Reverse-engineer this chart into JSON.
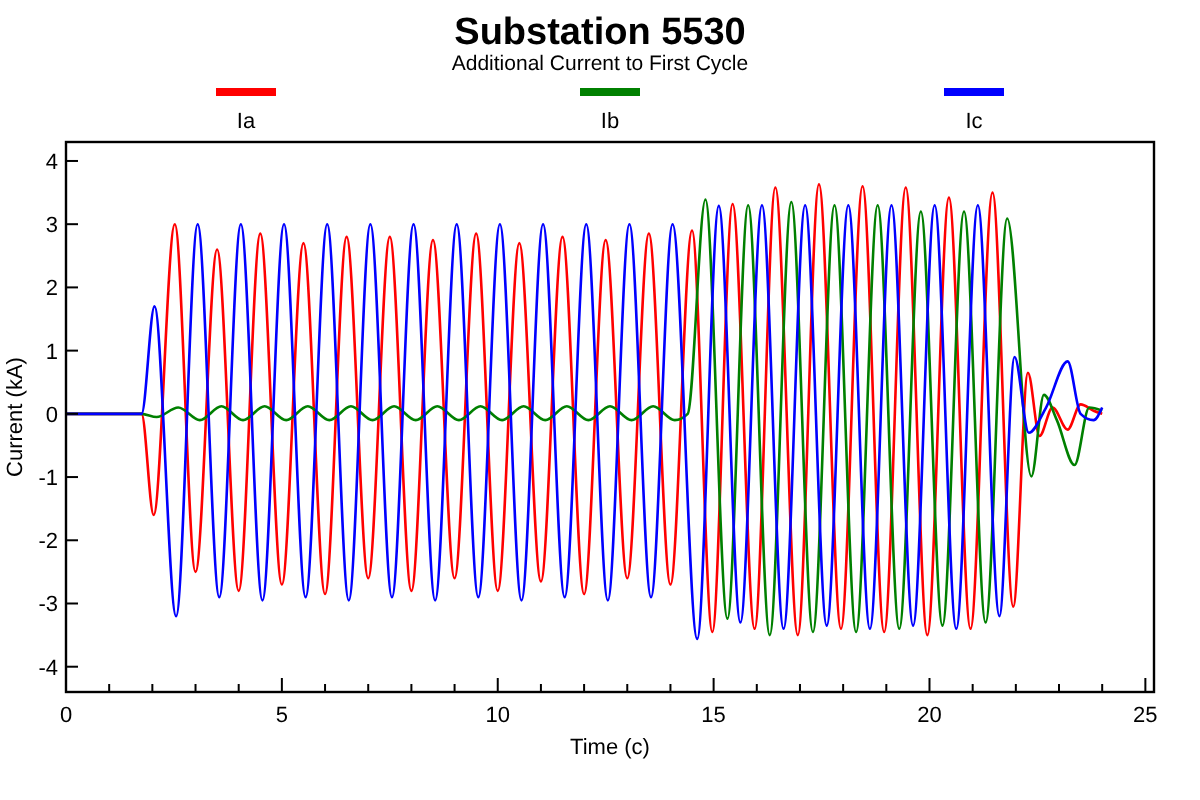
{
  "chart_data": {
    "type": "line",
    "title": "Substation 5530",
    "subtitle": "Additional Current to First Cycle",
    "xlabel": "Time (c)",
    "ylabel": "Current (kA)",
    "xlim": [
      0,
      25.2
    ],
    "ylim": [
      -4.4,
      4.3
    ],
    "xticks": [
      0,
      {
        "value": 1,
        "label": null
      },
      {
        "value": 2,
        "label": null
      },
      {
        "value": 3,
        "label": null
      },
      {
        "value": 4,
        "label": null
      },
      5,
      {
        "value": 6,
        "label": null
      },
      {
        "value": 7,
        "label": null
      },
      {
        "value": 8,
        "label": null
      },
      {
        "value": 9,
        "label": null
      },
      10,
      {
        "value": 11,
        "label": null
      },
      {
        "value": 12,
        "label": null
      },
      {
        "value": 13,
        "label": null
      },
      {
        "value": 14,
        "label": null
      },
      15,
      {
        "value": 16,
        "label": null
      },
      {
        "value": 17,
        "label": null
      },
      {
        "value": 18,
        "label": null
      },
      {
        "value": 19,
        "label": null
      },
      20,
      {
        "value": 21,
        "label": null
      },
      {
        "value": 22,
        "label": null
      },
      {
        "value": 23,
        "label": null
      },
      {
        "value": 24,
        "label": null
      },
      25
    ],
    "yticks": [
      -4,
      -3,
      -2,
      -1,
      0,
      1,
      2,
      3,
      4
    ],
    "grid": false,
    "legend": "top",
    "marker": "none",
    "line_style": "solid",
    "series": [
      {
        "name": "Ia",
        "color": "#ff0000",
        "x": [
          0,
          1.75,
          2.03,
          2.52,
          3.0,
          3.5,
          4.0,
          4.5,
          5.0,
          5.5,
          6.0,
          6.5,
          7.0,
          7.5,
          8.0,
          8.5,
          9.0,
          9.5,
          10.0,
          10.5,
          11.0,
          11.5,
          12.0,
          12.5,
          13.0,
          13.5,
          14.0,
          14.5,
          14.97,
          15.44,
          15.95,
          16.43,
          16.95,
          17.44,
          17.95,
          18.45,
          18.95,
          19.45,
          19.95,
          20.45,
          20.95,
          21.46,
          21.94,
          22.28,
          22.55,
          22.85,
          23.2,
          23.5,
          23.8,
          24.0
        ],
        "values": [
          0,
          0,
          -1.6,
          3.0,
          -2.5,
          2.6,
          -2.8,
          2.85,
          -2.7,
          2.7,
          -2.85,
          2.8,
          -2.6,
          2.8,
          -2.8,
          2.75,
          -2.6,
          2.85,
          -2.8,
          2.7,
          -2.65,
          2.8,
          -2.85,
          2.75,
          -2.6,
          2.85,
          -2.7,
          2.9,
          -3.45,
          3.32,
          -3.4,
          3.58,
          -3.5,
          3.63,
          -3.4,
          3.6,
          -3.45,
          3.58,
          -3.5,
          3.42,
          -3.4,
          3.5,
          -3.05,
          0.65,
          -0.35,
          0.1,
          -0.25,
          0.15,
          0.05,
          0.0
        ]
      },
      {
        "name": "Ib",
        "color": "#008000",
        "x": [
          0,
          1.75,
          2.1,
          2.6,
          3.1,
          3.6,
          4.1,
          4.6,
          5.1,
          5.6,
          6.1,
          6.6,
          7.1,
          7.6,
          8.1,
          8.6,
          9.1,
          9.6,
          10.1,
          10.6,
          11.1,
          11.6,
          12.1,
          12.6,
          13.1,
          13.6,
          14.1,
          14.4,
          14.81,
          15.32,
          15.8,
          16.3,
          16.8,
          17.3,
          17.8,
          18.3,
          18.8,
          19.3,
          19.8,
          20.3,
          20.8,
          21.3,
          21.8,
          22.36,
          22.65,
          22.95,
          23.36,
          23.7,
          24.0
        ],
        "values": [
          0,
          0,
          -0.05,
          0.1,
          -0.1,
          0.12,
          -0.1,
          0.12,
          -0.1,
          0.12,
          -0.1,
          0.12,
          -0.1,
          0.12,
          -0.1,
          0.12,
          -0.1,
          0.12,
          -0.1,
          0.12,
          -0.1,
          0.12,
          -0.1,
          0.12,
          -0.1,
          0.12,
          -0.1,
          0.0,
          3.39,
          -3.24,
          3.3,
          -3.5,
          3.35,
          -3.45,
          3.3,
          -3.45,
          3.3,
          -3.4,
          3.2,
          -3.35,
          3.2,
          -3.3,
          3.09,
          -0.99,
          0.3,
          -0.1,
          -0.81,
          0.1,
          0.05
        ]
      },
      {
        "name": "Ic",
        "color": "#0000ff",
        "x": [
          0,
          1.75,
          2.05,
          2.55,
          3.05,
          3.55,
          4.05,
          4.55,
          5.05,
          5.55,
          6.05,
          6.55,
          7.05,
          7.55,
          8.05,
          8.55,
          9.05,
          9.55,
          10.05,
          10.55,
          11.05,
          11.55,
          12.05,
          12.55,
          13.05,
          13.55,
          14.05,
          14.62,
          15.12,
          15.62,
          16.12,
          16.62,
          17.12,
          17.62,
          18.12,
          18.62,
          19.12,
          19.62,
          20.12,
          20.62,
          21.12,
          21.62,
          21.97,
          22.3,
          22.7,
          23.2,
          23.5,
          23.8,
          24.0
        ],
        "values": [
          0,
          0,
          1.7,
          -3.2,
          3.0,
          -2.9,
          3.0,
          -2.95,
          3.0,
          -2.9,
          3.0,
          -2.95,
          3.0,
          -2.9,
          3.0,
          -2.95,
          3.0,
          -2.9,
          3.0,
          -2.95,
          3.0,
          -2.9,
          3.0,
          -2.95,
          3.0,
          -2.9,
          3.0,
          -3.56,
          3.29,
          -3.3,
          3.3,
          -3.4,
          3.3,
          -3.35,
          3.3,
          -3.4,
          3.3,
          -3.35,
          3.3,
          -3.4,
          3.3,
          -3.2,
          0.9,
          -0.3,
          0.1,
          0.83,
          0.0,
          -0.1,
          0.1
        ]
      }
    ]
  }
}
